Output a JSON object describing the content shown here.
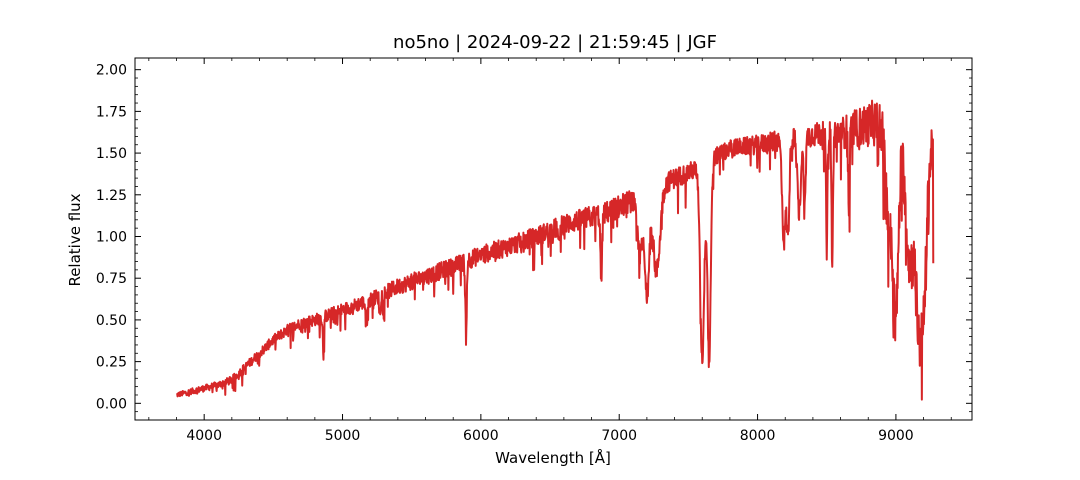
{
  "chart_data": {
    "type": "line",
    "title": "no5no | 2024-09-22 | 21:59:45 | JGF",
    "xlabel": "Wavelength [Å]",
    "ylabel": "Relative flux",
    "xlim": [
      3500,
      9550
    ],
    "ylim": [
      -0.1,
      2.07
    ],
    "xticks": [
      4000,
      5000,
      6000,
      7000,
      8000,
      9000
    ],
    "yticks": [
      0.0,
      0.25,
      0.5,
      0.75,
      1.0,
      1.25,
      1.5,
      1.75,
      2.0
    ],
    "xtick_labels": [
      "4000",
      "5000",
      "6000",
      "7000",
      "8000",
      "9000"
    ],
    "ytick_labels": [
      "0.00",
      "0.25",
      "0.50",
      "0.75",
      "1.00",
      "1.25",
      "1.50",
      "1.75",
      "2.00"
    ],
    "grid": false,
    "ticks_direction": "in",
    "series": [
      {
        "color": "#d62728",
        "x_range": [
          3800,
          9270
        ],
        "continuum": [
          [
            3800,
            0.05
          ],
          [
            3900,
            0.07
          ],
          [
            4000,
            0.09
          ],
          [
            4100,
            0.11
          ],
          [
            4200,
            0.14
          ],
          [
            4300,
            0.22
          ],
          [
            4400,
            0.3
          ],
          [
            4500,
            0.38
          ],
          [
            4600,
            0.44
          ],
          [
            4700,
            0.48
          ],
          [
            4800,
            0.5
          ],
          [
            4900,
            0.53
          ],
          [
            5000,
            0.56
          ],
          [
            5200,
            0.62
          ],
          [
            5400,
            0.7
          ],
          [
            5600,
            0.76
          ],
          [
            5800,
            0.82
          ],
          [
            6000,
            0.89
          ],
          [
            6200,
            0.94
          ],
          [
            6400,
            1.0
          ],
          [
            6600,
            1.07
          ],
          [
            6800,
            1.12
          ],
          [
            6900,
            1.14
          ],
          [
            7000,
            1.18
          ],
          [
            7200,
            1.26
          ],
          [
            7400,
            1.35
          ],
          [
            7600,
            1.42
          ],
          [
            7700,
            1.48
          ],
          [
            7800,
            1.53
          ],
          [
            8000,
            1.55
          ],
          [
            8200,
            1.58
          ],
          [
            8400,
            1.61
          ],
          [
            8600,
            1.62
          ],
          [
            8800,
            1.67
          ],
          [
            8900,
            1.7
          ],
          [
            9000,
            1.7
          ],
          [
            9100,
            1.66
          ],
          [
            9200,
            1.58
          ],
          [
            9270,
            1.55
          ]
        ],
        "absorption_lines": [
          [
            4861,
            0.16,
            5
          ],
          [
            5175,
            0.1,
            8
          ],
          [
            5270,
            0.12,
            5
          ],
          [
            5890,
            0.25,
            5
          ],
          [
            5896,
            0.22,
            4
          ],
          [
            6563,
            0.12,
            5
          ],
          [
            6870,
            0.4,
            6
          ],
          [
            7150,
            0.35,
            20
          ],
          [
            7200,
            0.6,
            15
          ],
          [
            7270,
            0.5,
            25
          ],
          [
            7600,
            1.15,
            15
          ],
          [
            7650,
            1.2,
            12
          ],
          [
            8190,
            0.6,
            12
          ],
          [
            8220,
            0.55,
            10
          ],
          [
            8300,
            0.45,
            12
          ],
          [
            8340,
            0.35,
            8
          ],
          [
            8500,
            0.7,
            5
          ],
          [
            8540,
            0.8,
            5
          ],
          [
            8660,
            0.45,
            5
          ],
          [
            8950,
            0.6,
            25
          ],
          [
            9000,
            1.1,
            20
          ],
          [
            9100,
            0.8,
            30
          ],
          [
            9170,
            1.1,
            25
          ],
          [
            9210,
            0.6,
            20
          ]
        ],
        "noise_amplitude": [
          [
            3800,
            0.03
          ],
          [
            4500,
            0.06
          ],
          [
            5500,
            0.1
          ],
          [
            6500,
            0.12
          ],
          [
            7000,
            0.14
          ],
          [
            7800,
            0.1
          ],
          [
            8500,
            0.15
          ],
          [
            8900,
            0.3
          ],
          [
            9270,
            0.35
          ]
        ]
      }
    ]
  }
}
